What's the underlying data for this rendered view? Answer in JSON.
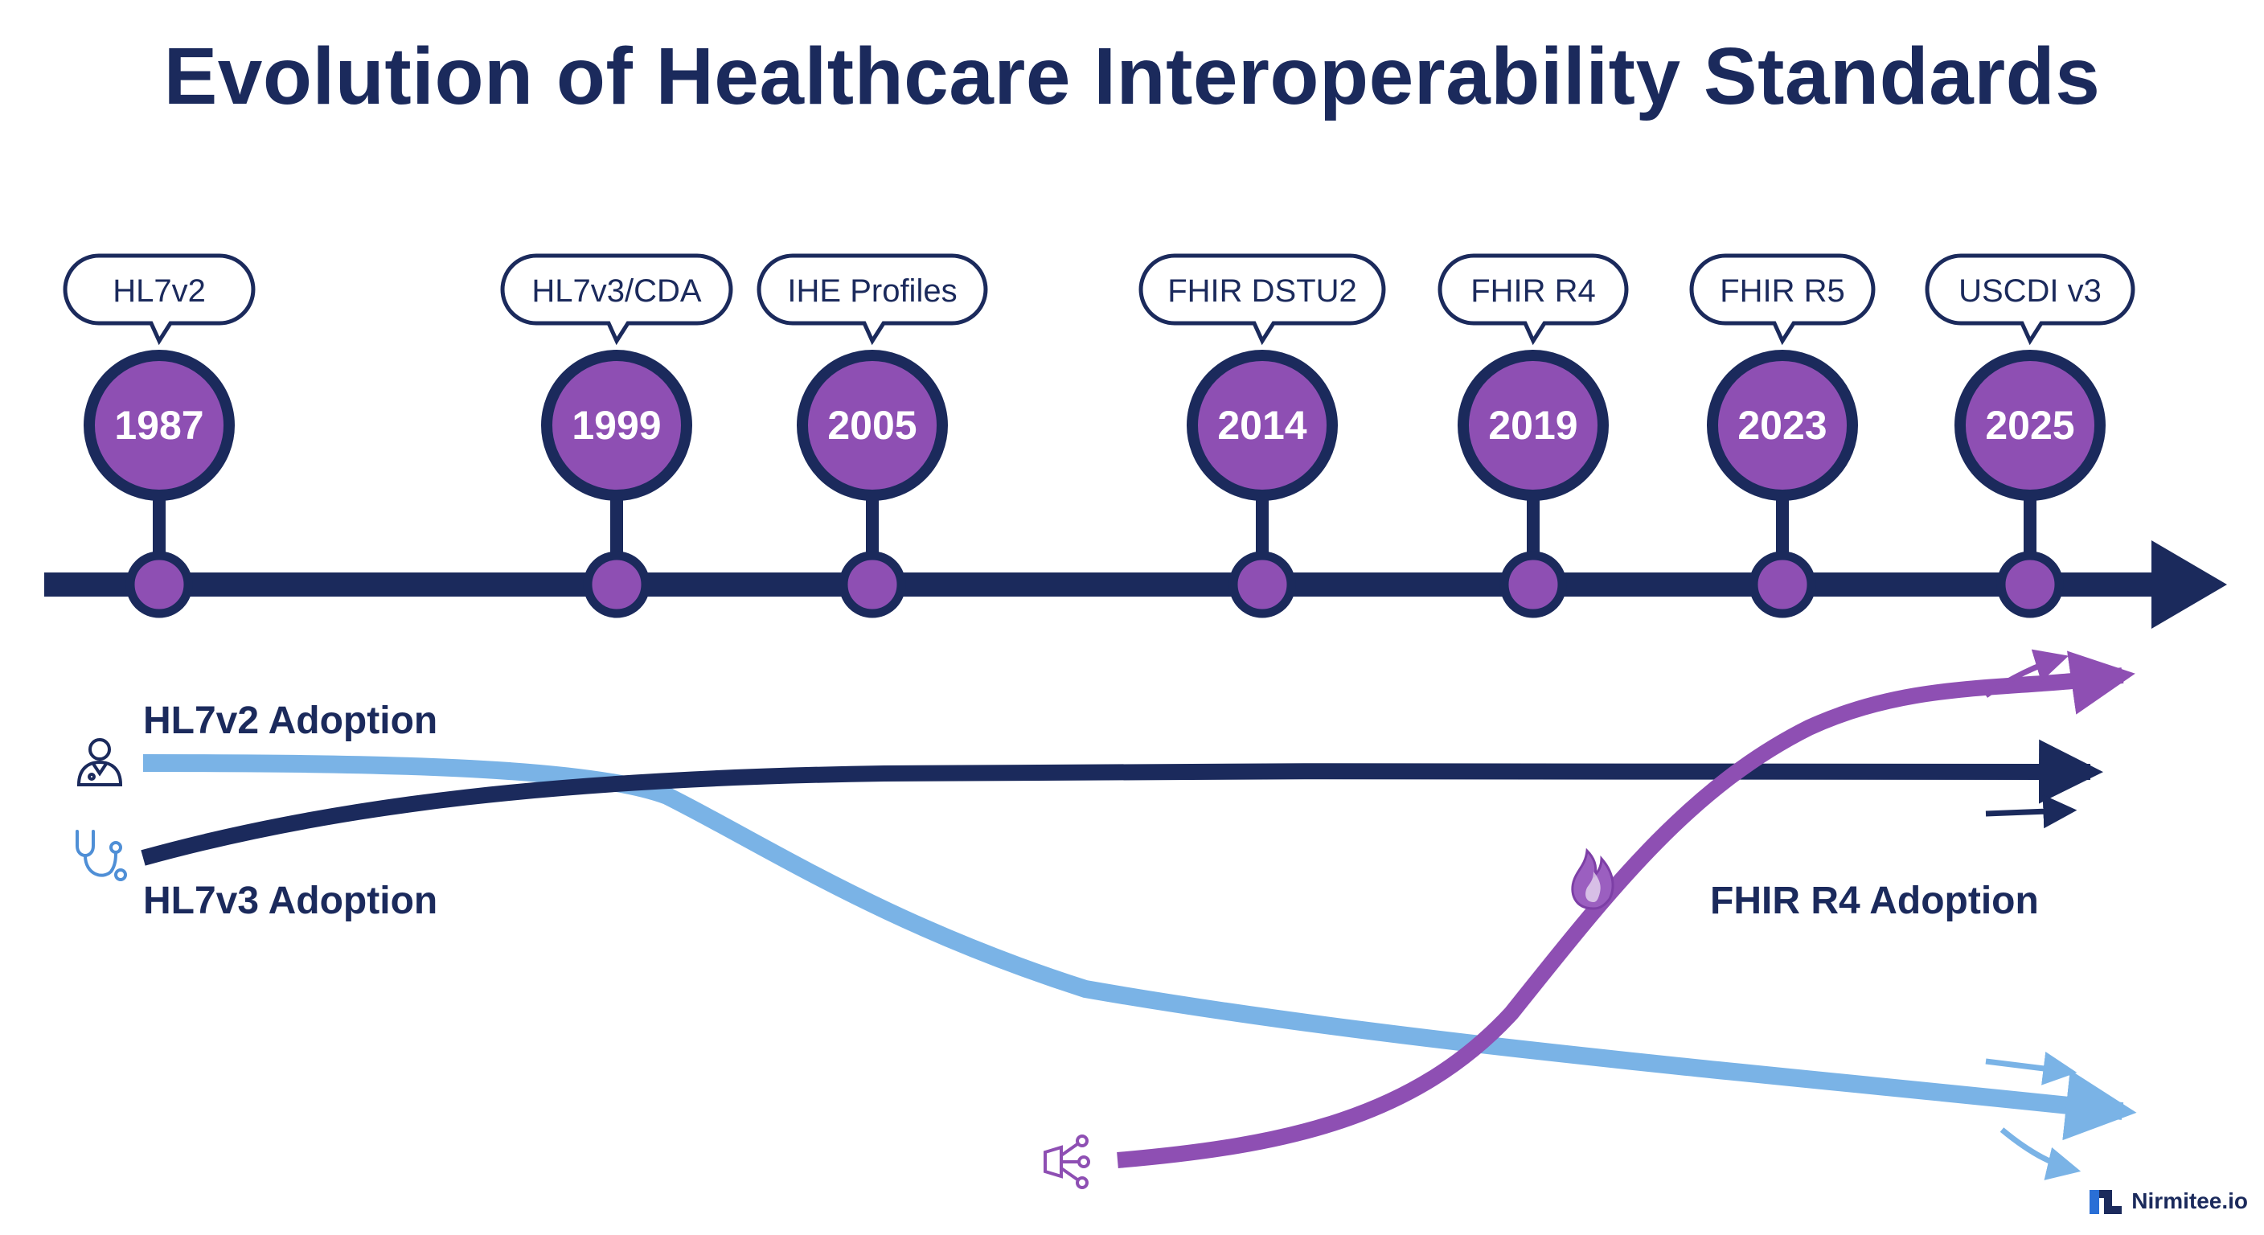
{
  "title": "Evolution of Healthcare Interoperability Standards",
  "milestones": [
    {
      "year": "1987",
      "label": "HL7v2"
    },
    {
      "year": "1999",
      "label": "HL7v3/CDA"
    },
    {
      "year": "2005",
      "label": "IHE Profiles"
    },
    {
      "year": "2014",
      "label": "FHIR DSTU2"
    },
    {
      "year": "2019",
      "label": "FHIR R4"
    },
    {
      "year": "2023",
      "label": "FHIR R5"
    },
    {
      "year": "2025",
      "label": "USCDI v3"
    }
  ],
  "adoption_labels": {
    "hl7v2": "HL7v2 Adoption",
    "hl7v3": "HL7v3 Adoption",
    "fhir": "FHIR R4 Adoption"
  },
  "icons": {
    "hl7v2": "doctor-icon",
    "hl7v3": "stethoscope-icon",
    "fhir_label": "flame-icon",
    "fhir_start": "network-hub-icon",
    "brand": "nirmitee-logo-icon"
  },
  "brand": "Nirmitee.io",
  "colors": {
    "navy": "#1b2a5c",
    "purple": "#8e4fb3",
    "light_blue": "#7ab3e6"
  }
}
